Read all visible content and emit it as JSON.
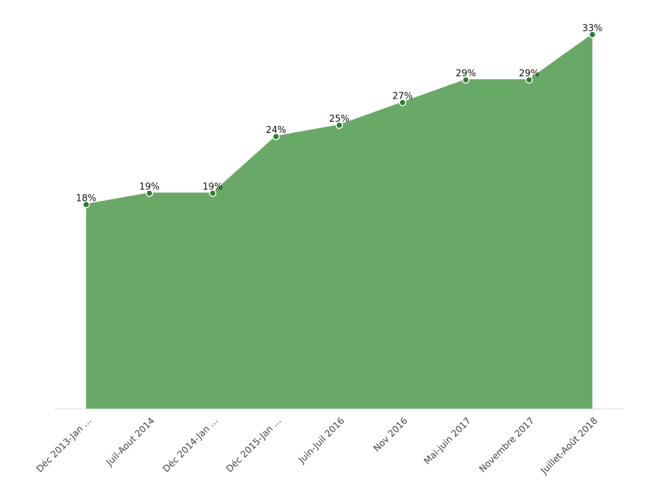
{
  "chart_data": {
    "type": "area",
    "categories": [
      "Déc 2013-Jan ...",
      "Juil-Aout 2014",
      "Déc 2014-Jan ...",
      "Déc 2015-Jan ...",
      "Juin-Juil 2016",
      "Nov 2016",
      "Mai-juin 2017",
      "Novembre 2017",
      "Juillet-Août 2018"
    ],
    "series": [
      {
        "values": [
          18,
          19,
          19,
          24,
          25,
          27,
          29,
          29,
          33
        ],
        "data_labels": [
          "18%",
          "19%",
          "19%",
          "24%",
          "25%",
          "27%",
          "29%",
          "29%",
          "33%"
        ]
      }
    ],
    "title": "",
    "xlabel": "",
    "ylabel": "",
    "ylim": [
      0,
      33
    ],
    "grid": false,
    "legend": "none",
    "colors": {
      "area_fill": "#69a968",
      "line": "#69a968",
      "marker": "#2e7d32",
      "marker_stroke": "#ffffff",
      "baseline": "#d9d9d9"
    }
  }
}
